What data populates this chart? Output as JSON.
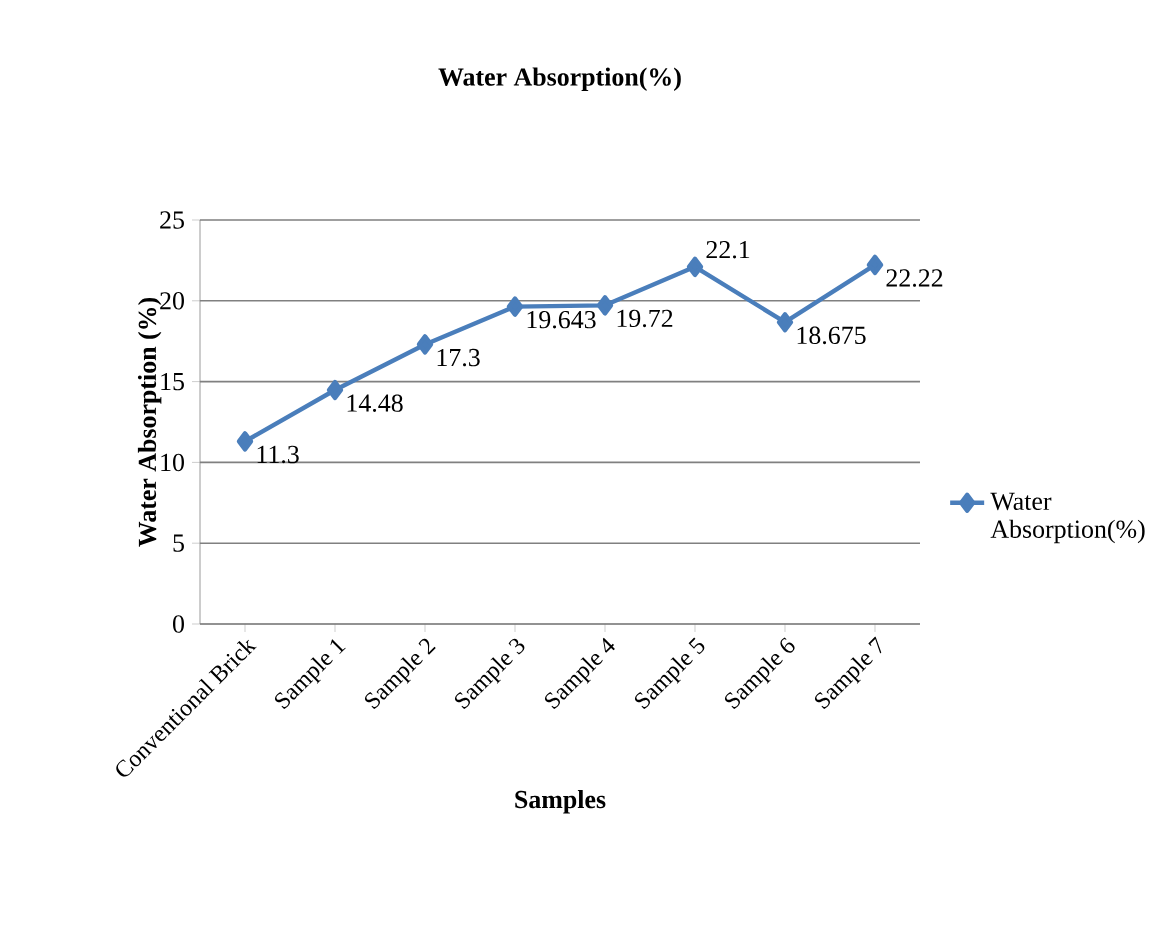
{
  "chart_data": {
    "type": "line",
    "title": "Water Absorption(%)",
    "xlabel": "Samples",
    "ylabel": "Water Absorption (%)",
    "categories": [
      "Conventional Brick",
      "Sample 1",
      "Sample 2",
      "Sample 3",
      "Sample 4",
      "Sample 5",
      "Sample 6",
      "Sample 7"
    ],
    "series": [
      {
        "name": "Water Absorption(%)",
        "color": "#4a7ebb",
        "values": [
          11.3,
          14.48,
          17.3,
          19.643,
          19.72,
          22.1,
          18.675,
          22.22
        ],
        "value_labels": [
          "11.3",
          "14.48",
          "17.3",
          "19.643",
          "19.72",
          "22.1",
          "18.675",
          "22.22"
        ]
      }
    ],
    "ylim": [
      0,
      25
    ],
    "yticks": [
      0,
      5,
      10,
      15,
      20,
      25
    ],
    "grid": "y",
    "legend": "right",
    "marker": "diamond",
    "line_style": "solid"
  }
}
